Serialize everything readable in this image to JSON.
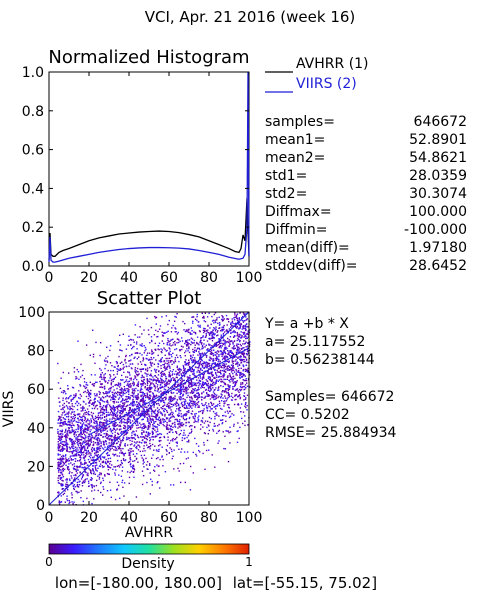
{
  "page": {
    "title": "VCI,  Apr. 21 2016 (week 16)",
    "footer": {
      "lon_label": "lon=[-180.00, 180.00]",
      "lat_label": "lat=[-55.15, 75.02]"
    }
  },
  "histogram": {
    "title": "Normalized Histogram",
    "legend": [
      {
        "label": "AVHRR (1)",
        "color": "#000000"
      },
      {
        "label": "VIIRS (2)",
        "color": "#1f1fd6"
      }
    ],
    "stats": [
      {
        "label": "samples=",
        "value": "646672"
      },
      {
        "label": "mean1=",
        "value": "52.8901"
      },
      {
        "label": "mean2=",
        "value": "54.8621"
      },
      {
        "label": "std1=",
        "value": "28.0359"
      },
      {
        "label": "std2=",
        "value": "30.3074"
      },
      {
        "label": "Diffmax=",
        "value": "100.000"
      },
      {
        "label": "Diffmin=",
        "value": "-100.000"
      },
      {
        "label": "mean(diff)=",
        "value": "1.97180"
      },
      {
        "label": "stddev(diff)=",
        "value": "28.6452"
      }
    ]
  },
  "scatter": {
    "title": "Scatter Plot",
    "xlabel": "AVHRR",
    "ylabel": "VIIRS",
    "equation": "Y= a +b * X",
    "a_label": "a= 25.117552",
    "b_label": "b= 0.56238144",
    "samples_label": "Samples= 646672",
    "cc_label": "CC=  0.5202",
    "rmse_label": "RMSE= 25.884934"
  },
  "colorbar": {
    "label": "Density",
    "min_label": "0",
    "max_label": "1",
    "colors": [
      "#5a0090",
      "#3a1cff",
      "#1f7bff",
      "#10c8ff",
      "#20e0a0",
      "#9ee020",
      "#ffd000",
      "#ff7a00",
      "#e02000"
    ]
  },
  "chart_data": [
    {
      "type": "line",
      "title": "Normalized Histogram",
      "xlim": [
        0,
        100
      ],
      "ylim": [
        0,
        1.0
      ],
      "x_ticks": [
        0,
        20,
        40,
        60,
        80,
        100
      ],
      "y_ticks": [
        0.0,
        0.2,
        0.4,
        0.6,
        0.8,
        1.0
      ],
      "y_tick_labels": [
        "0.0",
        "0.2",
        "0.4",
        "0.6",
        "0.8",
        "1.0"
      ],
      "series": [
        {
          "name": "AVHRR (1)",
          "color": "#000000",
          "x": [
            0,
            0.5,
            1,
            2,
            3,
            4,
            5,
            7,
            10,
            15,
            20,
            25,
            30,
            35,
            40,
            45,
            50,
            55,
            60,
            65,
            70,
            75,
            80,
            85,
            90,
            93,
            95,
            96,
            97,
            98,
            99,
            99.5,
            100
          ],
          "y": [
            0.03,
            0.17,
            0.06,
            0.05,
            0.05,
            0.06,
            0.07,
            0.08,
            0.09,
            0.11,
            0.13,
            0.145,
            0.155,
            0.165,
            0.17,
            0.175,
            0.178,
            0.18,
            0.178,
            0.172,
            0.162,
            0.15,
            0.13,
            0.11,
            0.09,
            0.075,
            0.07,
            0.09,
            0.16,
            0.13,
            0.35,
            0.18,
            0.05
          ]
        },
        {
          "name": "VIIRS (2)",
          "color": "#1f1fd6",
          "x": [
            0,
            0.5,
            1,
            2,
            3,
            5,
            10,
            15,
            20,
            25,
            30,
            35,
            40,
            45,
            50,
            55,
            60,
            65,
            70,
            75,
            80,
            85,
            90,
            95,
            97,
            98,
            99,
            99.5,
            100
          ],
          "y": [
            0.02,
            0.15,
            0.03,
            0.02,
            0.02,
            0.025,
            0.04,
            0.05,
            0.06,
            0.07,
            0.078,
            0.085,
            0.09,
            0.093,
            0.095,
            0.095,
            0.094,
            0.092,
            0.088,
            0.08,
            0.07,
            0.06,
            0.045,
            0.035,
            0.04,
            0.06,
            0.2,
            1.0,
            0.05
          ]
        }
      ]
    },
    {
      "type": "scatter",
      "title": "Scatter Plot",
      "xlabel": "AVHRR",
      "ylabel": "VIIRS",
      "xlim": [
        0,
        100
      ],
      "ylim": [
        0,
        100
      ],
      "x_ticks": [
        0,
        20,
        40,
        60,
        80,
        100
      ],
      "y_ticks": [
        0,
        20,
        40,
        60,
        80,
        100
      ],
      "regression": {
        "a": 25.117552,
        "b": 0.56238144
      },
      "one_to_one_line": true,
      "samples": 646672,
      "cc": 0.5202,
      "rmse": 25.884934
    }
  ]
}
